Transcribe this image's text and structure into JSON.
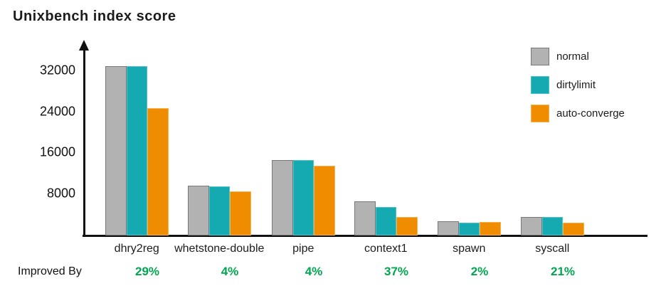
{
  "title": "Unixbench index score",
  "improved_by": {
    "label": "Improved By",
    "values": [
      "29%",
      "4%",
      "4%",
      "37%",
      "2%",
      "21%"
    ],
    "color": "#00a64f"
  },
  "legend": {
    "items": [
      "normal",
      "dirtylimit",
      "auto-converge"
    ]
  },
  "chart_data": {
    "type": "bar",
    "title": "Unixbench index score",
    "categories": [
      "dhry2reg",
      "whetstone-double",
      "pipe",
      "context1",
      "spawn",
      "syscall"
    ],
    "series": [
      {
        "name": "normal",
        "color": "#b2b2b2",
        "border": "#787878",
        "values": [
          33100,
          9750,
          14750,
          6700,
          2800,
          3600
        ]
      },
      {
        "name": "dirtylimit",
        "color": "#15a9b2",
        "border": "#4cc3ca",
        "values": [
          33100,
          9650,
          14750,
          5600,
          2500,
          3600
        ]
      },
      {
        "name": "auto-converge",
        "color": "#f08c00",
        "border": "#f8b04e",
        "values": [
          24900,
          8650,
          13650,
          3600,
          2650,
          2500
        ]
      }
    ],
    "yticks": [
      8000,
      16000,
      24000,
      32000
    ],
    "ylim": [
      0,
      37500
    ],
    "xlabel": "",
    "ylabel": "",
    "grid": false,
    "legend_position": "top-right",
    "annotations_row": {
      "label": "Improved By",
      "values": [
        "29%",
        "4%",
        "4%",
        "37%",
        "2%",
        "21%"
      ]
    }
  }
}
